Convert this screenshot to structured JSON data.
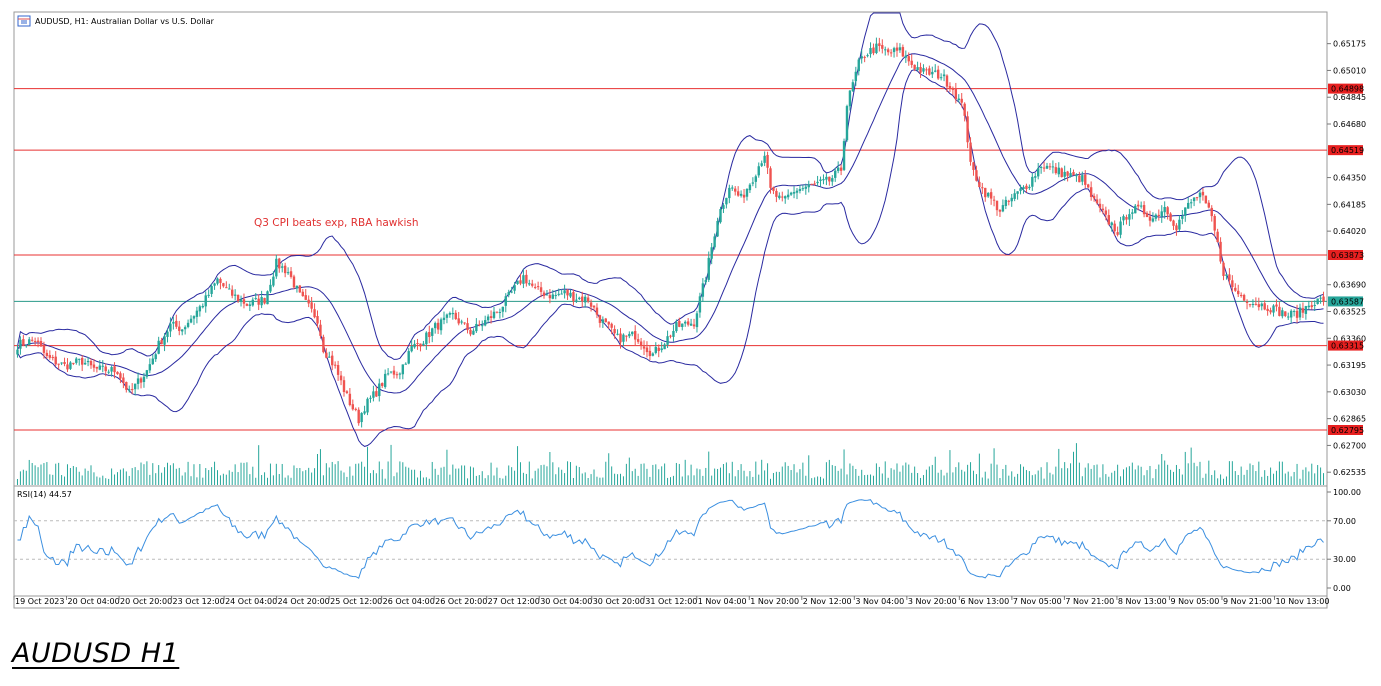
{
  "caption": "AUDUSD H1",
  "chart_data": {
    "type": "candlestick",
    "title": "AUDUSD, H1:  Australian Dollar vs U.S. Dollar",
    "annotation": "Q3 CPI beats exp, RBA hawkish",
    "indicator_label": "RSI(14) 44.57",
    "price_axis": {
      "ticks": [
        "0.65175",
        "0.65010",
        "0.64845",
        "0.64680",
        "0.64350",
        "0.64185",
        "0.64020",
        "0.63690",
        "0.63525",
        "0.63360",
        "0.63195",
        "0.63030",
        "0.62865",
        "0.62700",
        "0.62535"
      ],
      "range": [
        0.6245,
        0.6537
      ]
    },
    "rsi_axis": {
      "ticks": [
        "100.00",
        "70.00",
        "30.00",
        "0.00"
      ],
      "range": [
        0,
        100
      ],
      "levels": [
        70,
        30
      ]
    },
    "time_axis": [
      "19 Oct 2023",
      "20 Oct 04:00",
      "20 Oct 20:00",
      "23 Oct 12:00",
      "24 Oct 04:00",
      "24 Oct 20:00",
      "25 Oct 12:00",
      "26 Oct 04:00",
      "26 Oct 20:00",
      "27 Oct 12:00",
      "30 Oct 04:00",
      "30 Oct 20:00",
      "31 Oct 12:00",
      "1 Nov 04:00",
      "1 Nov 20:00",
      "2 Nov 12:00",
      "3 Nov 04:00",
      "3 Nov 20:00",
      "6 Nov 13:00",
      "7 Nov 05:00",
      "7 Nov 21:00",
      "8 Nov 13:00",
      "9 Nov 05:00",
      "9 Nov 21:00",
      "10 Nov 13:00"
    ],
    "horizontal_levels": [
      {
        "value": 0.64898,
        "label": "0.64898"
      },
      {
        "value": 0.64519,
        "label": "0.64519"
      },
      {
        "value": 0.63873,
        "label": "0.63873"
      },
      {
        "value": 0.63315,
        "label": "0.63315"
      },
      {
        "value": 0.62795,
        "label": "0.62795"
      }
    ],
    "current_price": {
      "value": 0.63587,
      "label": "0.63587"
    },
    "close_path": [
      [
        0,
        0.6332
      ],
      [
        6,
        0.6335
      ],
      [
        10,
        0.6324
      ],
      [
        16,
        0.6319
      ],
      [
        22,
        0.6322
      ],
      [
        26,
        0.6317
      ],
      [
        34,
        0.6316
      ],
      [
        38,
        0.6302
      ],
      [
        44,
        0.6316
      ],
      [
        48,
        0.6332
      ],
      [
        52,
        0.6344
      ],
      [
        56,
        0.6342
      ],
      [
        62,
        0.6355
      ],
      [
        64,
        0.636
      ],
      [
        68,
        0.6372
      ],
      [
        72,
        0.6364
      ],
      [
        78,
        0.6357
      ],
      [
        84,
        0.636
      ],
      [
        88,
        0.6382
      ],
      [
        92,
        0.6377
      ],
      [
        96,
        0.6362
      ],
      [
        102,
        0.6348
      ],
      [
        104,
        0.633
      ],
      [
        108,
        0.6318
      ],
      [
        112,
        0.63
      ],
      [
        116,
        0.6286
      ],
      [
        118,
        0.6294
      ],
      [
        122,
        0.6303
      ],
      [
        126,
        0.6314
      ],
      [
        130,
        0.6316
      ],
      [
        134,
        0.633
      ],
      [
        138,
        0.6335
      ],
      [
        142,
        0.6343
      ],
      [
        148,
        0.635
      ],
      [
        154,
        0.634
      ],
      [
        158,
        0.6345
      ],
      [
        164,
        0.6354
      ],
      [
        168,
        0.6364
      ],
      [
        172,
        0.6374
      ],
      [
        176,
        0.6366
      ],
      [
        182,
        0.6362
      ],
      [
        186,
        0.6364
      ],
      [
        190,
        0.6361
      ],
      [
        194,
        0.636
      ],
      [
        198,
        0.6348
      ],
      [
        204,
        0.6336
      ],
      [
        210,
        0.6338
      ],
      [
        216,
        0.6326
      ],
      [
        220,
        0.6334
      ],
      [
        224,
        0.6343
      ],
      [
        230,
        0.6346
      ],
      [
        234,
        0.6374
      ],
      [
        238,
        0.641
      ],
      [
        242,
        0.643
      ],
      [
        246,
        0.6422
      ],
      [
        250,
        0.6435
      ],
      [
        254,
        0.645
      ],
      [
        256,
        0.6427
      ],
      [
        260,
        0.642
      ],
      [
        264,
        0.6427
      ],
      [
        270,
        0.643
      ],
      [
        274,
        0.6432
      ],
      [
        276,
        0.6433
      ],
      [
        280,
        0.644
      ],
      [
        282,
        0.648
      ],
      [
        286,
        0.6505
      ],
      [
        288,
        0.6511
      ],
      [
        292,
        0.6515
      ],
      [
        296,
        0.6512
      ],
      [
        300,
        0.6513
      ],
      [
        304,
        0.6505
      ],
      [
        308,
        0.65
      ],
      [
        314,
        0.6498
      ],
      [
        318,
        0.649
      ],
      [
        322,
        0.6475
      ],
      [
        324,
        0.6442
      ],
      [
        328,
        0.6428
      ],
      [
        334,
        0.6415
      ],
      [
        338,
        0.6422
      ],
      [
        344,
        0.6432
      ],
      [
        348,
        0.6443
      ],
      [
        352,
        0.644
      ],
      [
        358,
        0.6436
      ],
      [
        362,
        0.6434
      ],
      [
        366,
        0.642
      ],
      [
        370,
        0.641
      ],
      [
        374,
        0.6402
      ],
      [
        378,
        0.6415
      ],
      [
        382,
        0.6415
      ],
      [
        386,
        0.641
      ],
      [
        390,
        0.6417
      ],
      [
        394,
        0.6405
      ],
      [
        398,
        0.6418
      ],
      [
        402,
        0.6425
      ],
      [
        406,
        0.641
      ],
      [
        410,
        0.6377
      ],
      [
        414,
        0.6365
      ],
      [
        420,
        0.6358
      ],
      [
        426,
        0.6355
      ],
      [
        432,
        0.635
      ],
      [
        436,
        0.6352
      ],
      [
        440,
        0.6358
      ],
      [
        444,
        0.636
      ]
    ]
  }
}
